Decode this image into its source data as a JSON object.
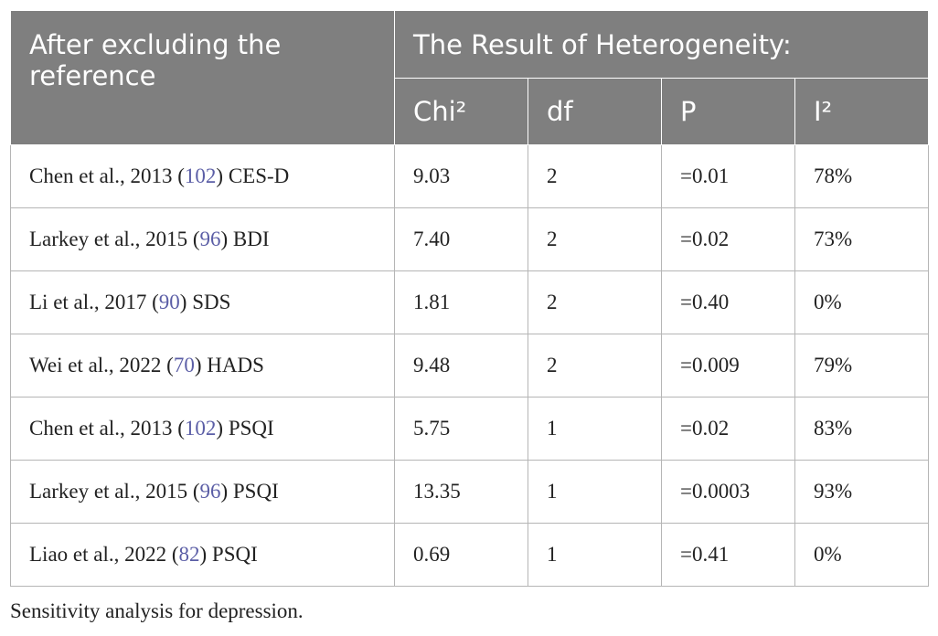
{
  "table": {
    "header": {
      "row_label": "After excluding the reference",
      "group": "The Result of Heterogeneity:",
      "columns": [
        "Chi²",
        "df",
        "P",
        "I²"
      ]
    },
    "rows": [
      {
        "study": {
          "before": "Chen et al., 2013 (",
          "ref": "102",
          "after": ") CES-D"
        },
        "cells": [
          "9.03",
          "2",
          "=0.01",
          "78%"
        ]
      },
      {
        "study": {
          "before": "Larkey et al., 2015 (",
          "ref": "96",
          "after": ") BDI"
        },
        "cells": [
          "7.40",
          "2",
          "=0.02",
          "73%"
        ]
      },
      {
        "study": {
          "before": "Li et al., 2017 (",
          "ref": "90",
          "after": ") SDS"
        },
        "cells": [
          "1.81",
          "2",
          "=0.40",
          "0%"
        ]
      },
      {
        "study": {
          "before": "Wei et al., 2022 (",
          "ref": "70",
          "after": ") HADS"
        },
        "cells": [
          "9.48",
          "2",
          "=0.009",
          "79%"
        ]
      },
      {
        "study": {
          "before": "Chen et al., 2013 (",
          "ref": "102",
          "after": ") PSQI"
        },
        "cells": [
          "5.75",
          "1",
          "=0.02",
          "83%"
        ]
      },
      {
        "study": {
          "before": "Larkey et al., 2015 (",
          "ref": "96",
          "after": ") PSQI"
        },
        "cells": [
          "13.35",
          "1",
          "=0.0003",
          "93%"
        ]
      },
      {
        "study": {
          "before": "Liao et al., 2022 (",
          "ref": "82",
          "after": ") PSQI"
        },
        "cells": [
          "0.69",
          "1",
          "=0.41",
          "0%"
        ]
      }
    ]
  },
  "caption": "Sensitivity analysis for depression."
}
